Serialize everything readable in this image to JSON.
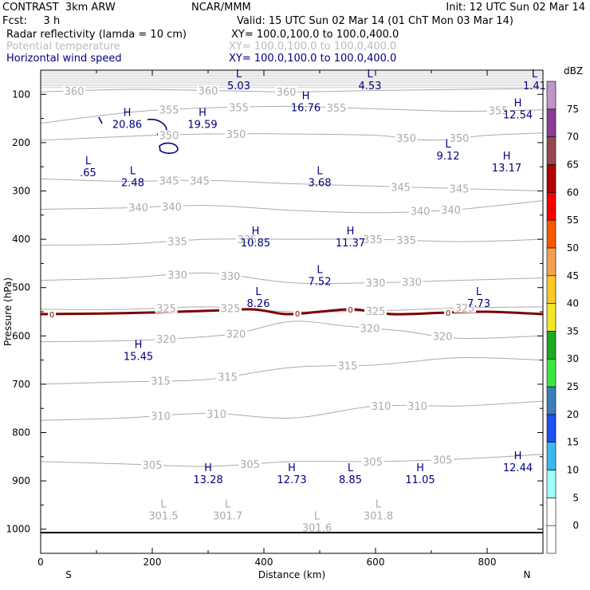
{
  "header": {
    "left1": "CONTRAST  3km ARW",
    "center1": "NCAR/MMM",
    "right1": "Init: 12 UTC Sun 02 Mar 14",
    "left2": "Fcst:     3 h",
    "center2": "Valid: 15 UTC Sun 02 Mar 14 (01 ChT Mon 03 Mar 14)",
    "field1": "Radar reflectivity (lamda = 10 cm)",
    "field1_xy": "XY= 100.0,100.0 to 100.0,400.0",
    "field2": "Potential temperature",
    "field2_xy": "XY= 100.0,100.0 to 100.0,400.0",
    "field3": "Horizontal wind speed",
    "field3_xy": "XY= 100.0,100.0 to 100.0,400.0"
  },
  "colors": {
    "theta": "#aaaaaa",
    "wind": "#000080",
    "zero_contour": "#7a0000",
    "potential_temperature_label": "#bbbbbb"
  },
  "chart_data": {
    "type": "contour",
    "xlabel": "Distance (km)",
    "ylabel": "Pressure (hPa)",
    "xlim": [
      0,
      900
    ],
    "ylim": [
      1050,
      50
    ],
    "x_ticks": [
      0,
      200,
      400,
      600,
      800
    ],
    "y_ticks": [
      100,
      200,
      300,
      400,
      500,
      600,
      700,
      800,
      900,
      1000
    ],
    "x_ends": [
      "S",
      "N"
    ],
    "surface_pressure": 1007,
    "theta_contours": [
      {
        "level": 360,
        "points": [
          [
            0,
            95
          ],
          [
            150,
            90
          ],
          [
            300,
            92
          ],
          [
            450,
            95
          ],
          [
            600,
            92
          ],
          [
            750,
            90
          ],
          [
            900,
            88
          ]
        ],
        "labels": [
          [
            60,
            "360"
          ],
          [
            300,
            "360"
          ],
          [
            440,
            "360"
          ]
        ]
      },
      {
        "level": 355,
        "points": [
          [
            0,
            160
          ],
          [
            80,
            148
          ],
          [
            180,
            135
          ],
          [
            300,
            128
          ],
          [
            450,
            125
          ],
          [
            600,
            130
          ],
          [
            750,
            135
          ],
          [
            900,
            132
          ]
        ],
        "labels": [
          [
            230,
            "355"
          ],
          [
            355,
            "355"
          ],
          [
            530,
            "355"
          ],
          [
            820,
            "355"
          ]
        ]
      },
      {
        "level": 350,
        "points": [
          [
            0,
            195
          ],
          [
            100,
            190
          ],
          [
            200,
            185
          ],
          [
            300,
            182
          ],
          [
            450,
            182
          ],
          [
            600,
            185
          ],
          [
            700,
            195
          ],
          [
            800,
            185
          ],
          [
            900,
            180
          ]
        ],
        "labels": [
          [
            230,
            "350"
          ],
          [
            350,
            "350"
          ],
          [
            655,
            "350"
          ],
          [
            750,
            "350"
          ]
        ]
      },
      {
        "level": 345,
        "points": [
          [
            0,
            275
          ],
          [
            150,
            280
          ],
          [
            300,
            278
          ],
          [
            450,
            285
          ],
          [
            600,
            290
          ],
          [
            750,
            295
          ],
          [
            900,
            300
          ]
        ],
        "labels": [
          [
            230,
            "345"
          ],
          [
            285,
            "345"
          ],
          [
            645,
            "345"
          ],
          [
            750,
            "345"
          ]
        ]
      },
      {
        "level": 340,
        "points": [
          [
            0,
            338
          ],
          [
            150,
            335
          ],
          [
            300,
            330
          ],
          [
            450,
            340
          ],
          [
            600,
            345
          ],
          [
            750,
            338
          ],
          [
            900,
            320
          ]
        ],
        "labels": [
          [
            175,
            "340"
          ],
          [
            235,
            "340"
          ],
          [
            680,
            "340"
          ],
          [
            735,
            "340"
          ]
        ]
      },
      {
        "level": 335,
        "points": [
          [
            0,
            412
          ],
          [
            150,
            410
          ],
          [
            300,
            400
          ],
          [
            450,
            400
          ],
          [
            600,
            400
          ],
          [
            750,
            405
          ],
          [
            900,
            400
          ]
        ],
        "labels": [
          [
            245,
            "335"
          ],
          [
            370,
            "335"
          ],
          [
            595,
            "335"
          ],
          [
            655,
            "335"
          ]
        ]
      },
      {
        "level": 330,
        "points": [
          [
            0,
            485
          ],
          [
            150,
            480
          ],
          [
            300,
            470
          ],
          [
            450,
            490
          ],
          [
            600,
            490
          ],
          [
            750,
            485
          ],
          [
            900,
            480
          ]
        ],
        "labels": [
          [
            245,
            "330"
          ],
          [
            340,
            "330"
          ],
          [
            600,
            "330"
          ],
          [
            665,
            "330"
          ]
        ]
      },
      {
        "level": 325,
        "points": [
          [
            0,
            545
          ],
          [
            150,
            545
          ],
          [
            300,
            540
          ],
          [
            450,
            550
          ],
          [
            600,
            548
          ],
          [
            750,
            542
          ],
          [
            900,
            540
          ]
        ],
        "labels": [
          [
            225,
            "325"
          ],
          [
            340,
            "325"
          ],
          [
            600,
            "325"
          ],
          [
            760,
            "325"
          ]
        ]
      },
      {
        "level": 320,
        "points": [
          [
            0,
            612
          ],
          [
            150,
            610
          ],
          [
            250,
            605
          ],
          [
            350,
            595
          ],
          [
            450,
            570
          ],
          [
            550,
            580
          ],
          [
            650,
            590
          ],
          [
            750,
            605
          ],
          [
            900,
            600
          ]
        ],
        "labels": [
          [
            225,
            "320"
          ],
          [
            350,
            "320"
          ],
          [
            590,
            "320"
          ],
          [
            720,
            "320"
          ]
        ]
      },
      {
        "level": 315,
        "points": [
          [
            0,
            700
          ],
          [
            150,
            695
          ],
          [
            300,
            690
          ],
          [
            450,
            665
          ],
          [
            600,
            660
          ],
          [
            750,
            645
          ],
          [
            900,
            650
          ]
        ],
        "labels": [
          [
            215,
            "315"
          ],
          [
            335,
            "315"
          ],
          [
            550,
            "315"
          ]
        ]
      },
      {
        "level": 310,
        "points": [
          [
            0,
            775
          ],
          [
            150,
            770
          ],
          [
            300,
            760
          ],
          [
            450,
            770
          ],
          [
            600,
            745
          ],
          [
            750,
            745
          ],
          [
            900,
            735
          ]
        ],
        "labels": [
          [
            215,
            "310"
          ],
          [
            315,
            "310"
          ],
          [
            610,
            "310"
          ],
          [
            675,
            "310"
          ]
        ]
      },
      {
        "level": 305,
        "points": [
          [
            0,
            860
          ],
          [
            150,
            865
          ],
          [
            300,
            870
          ],
          [
            450,
            860
          ],
          [
            600,
            860
          ],
          [
            750,
            855
          ],
          [
            900,
            845
          ]
        ],
        "labels": [
          [
            200,
            "305"
          ],
          [
            375,
            "305"
          ],
          [
            595,
            "305"
          ],
          [
            720,
            "305"
          ]
        ]
      }
    ],
    "reflectivity_zero_contour": {
      "points": [
        [
          0,
          555
        ],
        [
          150,
          553
        ],
        [
          300,
          548
        ],
        [
          380,
          545
        ],
        [
          440,
          555
        ],
        [
          500,
          550
        ],
        [
          560,
          545
        ],
        [
          630,
          555
        ],
        [
          720,
          552
        ],
        [
          800,
          550
        ],
        [
          900,
          555
        ]
      ],
      "labels": [
        [
          20,
          "0"
        ],
        [
          460,
          "0"
        ],
        [
          555,
          "0"
        ],
        [
          730,
          "0"
        ]
      ]
    },
    "wind_extrema": [
      {
        "x": 355,
        "p": 65,
        "type": "L",
        "value": "5.03"
      },
      {
        "x": 590,
        "p": 65,
        "type": "L",
        "value": "4.53"
      },
      {
        "x": 885,
        "p": 65,
        "type": "L",
        "value": "1.41"
      },
      {
        "x": 155,
        "p": 145,
        "type": "H",
        "value": "20.86"
      },
      {
        "x": 290,
        "p": 145,
        "type": "H",
        "value": "19.59"
      },
      {
        "x": 475,
        "p": 110,
        "type": "H",
        "value": "16.76"
      },
      {
        "x": 855,
        "p": 125,
        "type": "H",
        "value": "12.54"
      },
      {
        "x": 730,
        "p": 210,
        "type": "L",
        "value": "9.12"
      },
      {
        "x": 85,
        "p": 245,
        "type": "L",
        "value": ".65"
      },
      {
        "x": 165,
        "p": 265,
        "type": "L",
        "value": "2.48"
      },
      {
        "x": 500,
        "p": 265,
        "type": "L",
        "value": "3.68"
      },
      {
        "x": 835,
        "p": 235,
        "type": "H",
        "value": "13.17"
      },
      {
        "x": 385,
        "p": 390,
        "type": "H",
        "value": "10.85"
      },
      {
        "x": 555,
        "p": 390,
        "type": "H",
        "value": "11.37"
      },
      {
        "x": 500,
        "p": 470,
        "type": "L",
        "value": "7.52"
      },
      {
        "x": 390,
        "p": 515,
        "type": "L",
        "value": "8.26"
      },
      {
        "x": 785,
        "p": 515,
        "type": "L",
        "value": "7.73"
      },
      {
        "x": 175,
        "p": 625,
        "type": "H",
        "value": "15.45"
      },
      {
        "x": 855,
        "p": 855,
        "type": "H",
        "value": "12.44"
      },
      {
        "x": 300,
        "p": 880,
        "type": "H",
        "value": "13.28"
      },
      {
        "x": 450,
        "p": 880,
        "type": "H",
        "value": "12.73"
      },
      {
        "x": 555,
        "p": 880,
        "type": "L",
        "value": "8.85"
      },
      {
        "x": 680,
        "p": 880,
        "type": "H",
        "value": "11.05"
      }
    ],
    "theta_minima": [
      {
        "x": 220,
        "p": 955,
        "type": "L",
        "value": "301.5"
      },
      {
        "x": 335,
        "p": 955,
        "type": "L",
        "value": "301.7"
      },
      {
        "x": 495,
        "p": 980,
        "type": "L",
        "value": "301.6"
      },
      {
        "x": 605,
        "p": 955,
        "type": "L",
        "value": "301.8"
      }
    ],
    "colorbar": {
      "unit": "dBZ",
      "ticks": [
        "0",
        "5",
        "10",
        "15",
        "20",
        "25",
        "30",
        "35",
        "40",
        "45",
        "50",
        "55",
        "60",
        "65",
        "70",
        "75"
      ],
      "colors": [
        "#ffffff",
        "#9ffefe",
        "#3cb8f0",
        "#1e4ff0",
        "#3c7eb8",
        "#3ce640",
        "#1eaa1e",
        "#f0e628",
        "#fac828",
        "#f5a050",
        "#f55a00",
        "#f50000",
        "#b40000",
        "#964650",
        "#8c3c96",
        "#be96c8"
      ]
    }
  }
}
